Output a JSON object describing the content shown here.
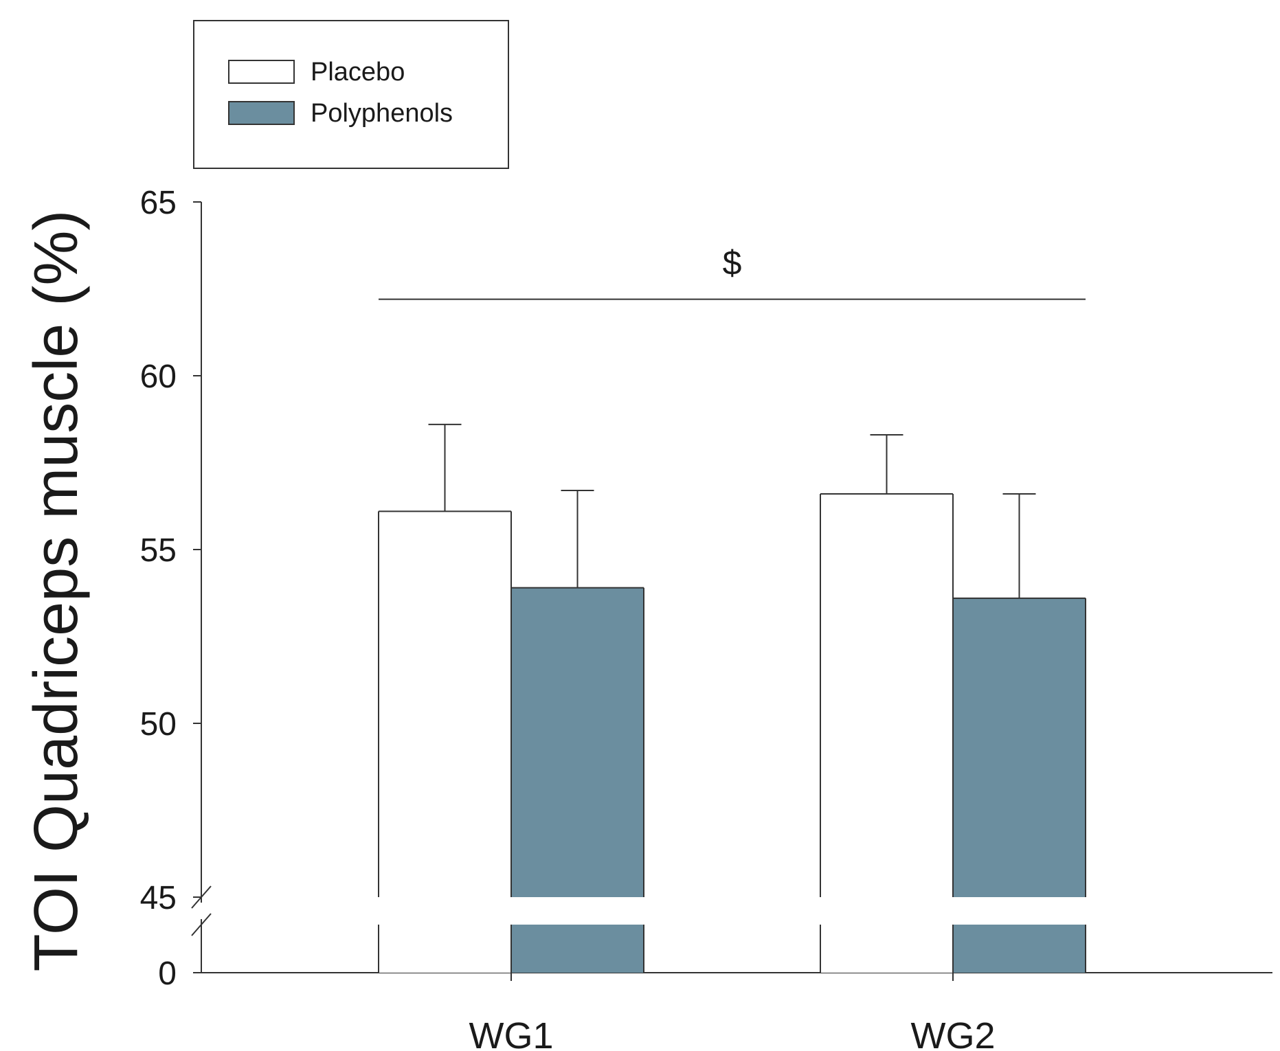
{
  "chart_data": {
    "type": "bar",
    "title": "",
    "xlabel": "",
    "ylabel": "TOI Quadriceps muscle (%)",
    "categories": [
      "WG1",
      "WG2"
    ],
    "series": [
      {
        "name": "Placebo",
        "color": "#ffffff",
        "values": [
          56.1,
          56.6
        ],
        "errors": [
          2.5,
          1.7
        ]
      },
      {
        "name": "Polyphenols",
        "color": "#6b8e9f",
        "values": [
          53.9,
          53.6
        ],
        "errors": [
          2.8,
          3.0
        ]
      }
    ],
    "yticks": [
      {
        "label": "65",
        "value": 65
      },
      {
        "label": "60",
        "value": 60
      },
      {
        "label": "55",
        "value": 55
      },
      {
        "label": "50",
        "value": 50
      },
      {
        "label": "45",
        "value": 45
      },
      {
        "label": "0",
        "value": 0
      }
    ],
    "ylim": [
      45,
      65
    ],
    "axis_break": {
      "lower_segment": [
        0,
        45
      ]
    },
    "legend": {
      "position": "top-left",
      "entries": [
        "Placebo",
        "Polyphenols"
      ]
    },
    "annotation": {
      "text": "$",
      "spans_categories": [
        "WG1",
        "WG2"
      ],
      "y": 62.2
    },
    "grid": false
  }
}
